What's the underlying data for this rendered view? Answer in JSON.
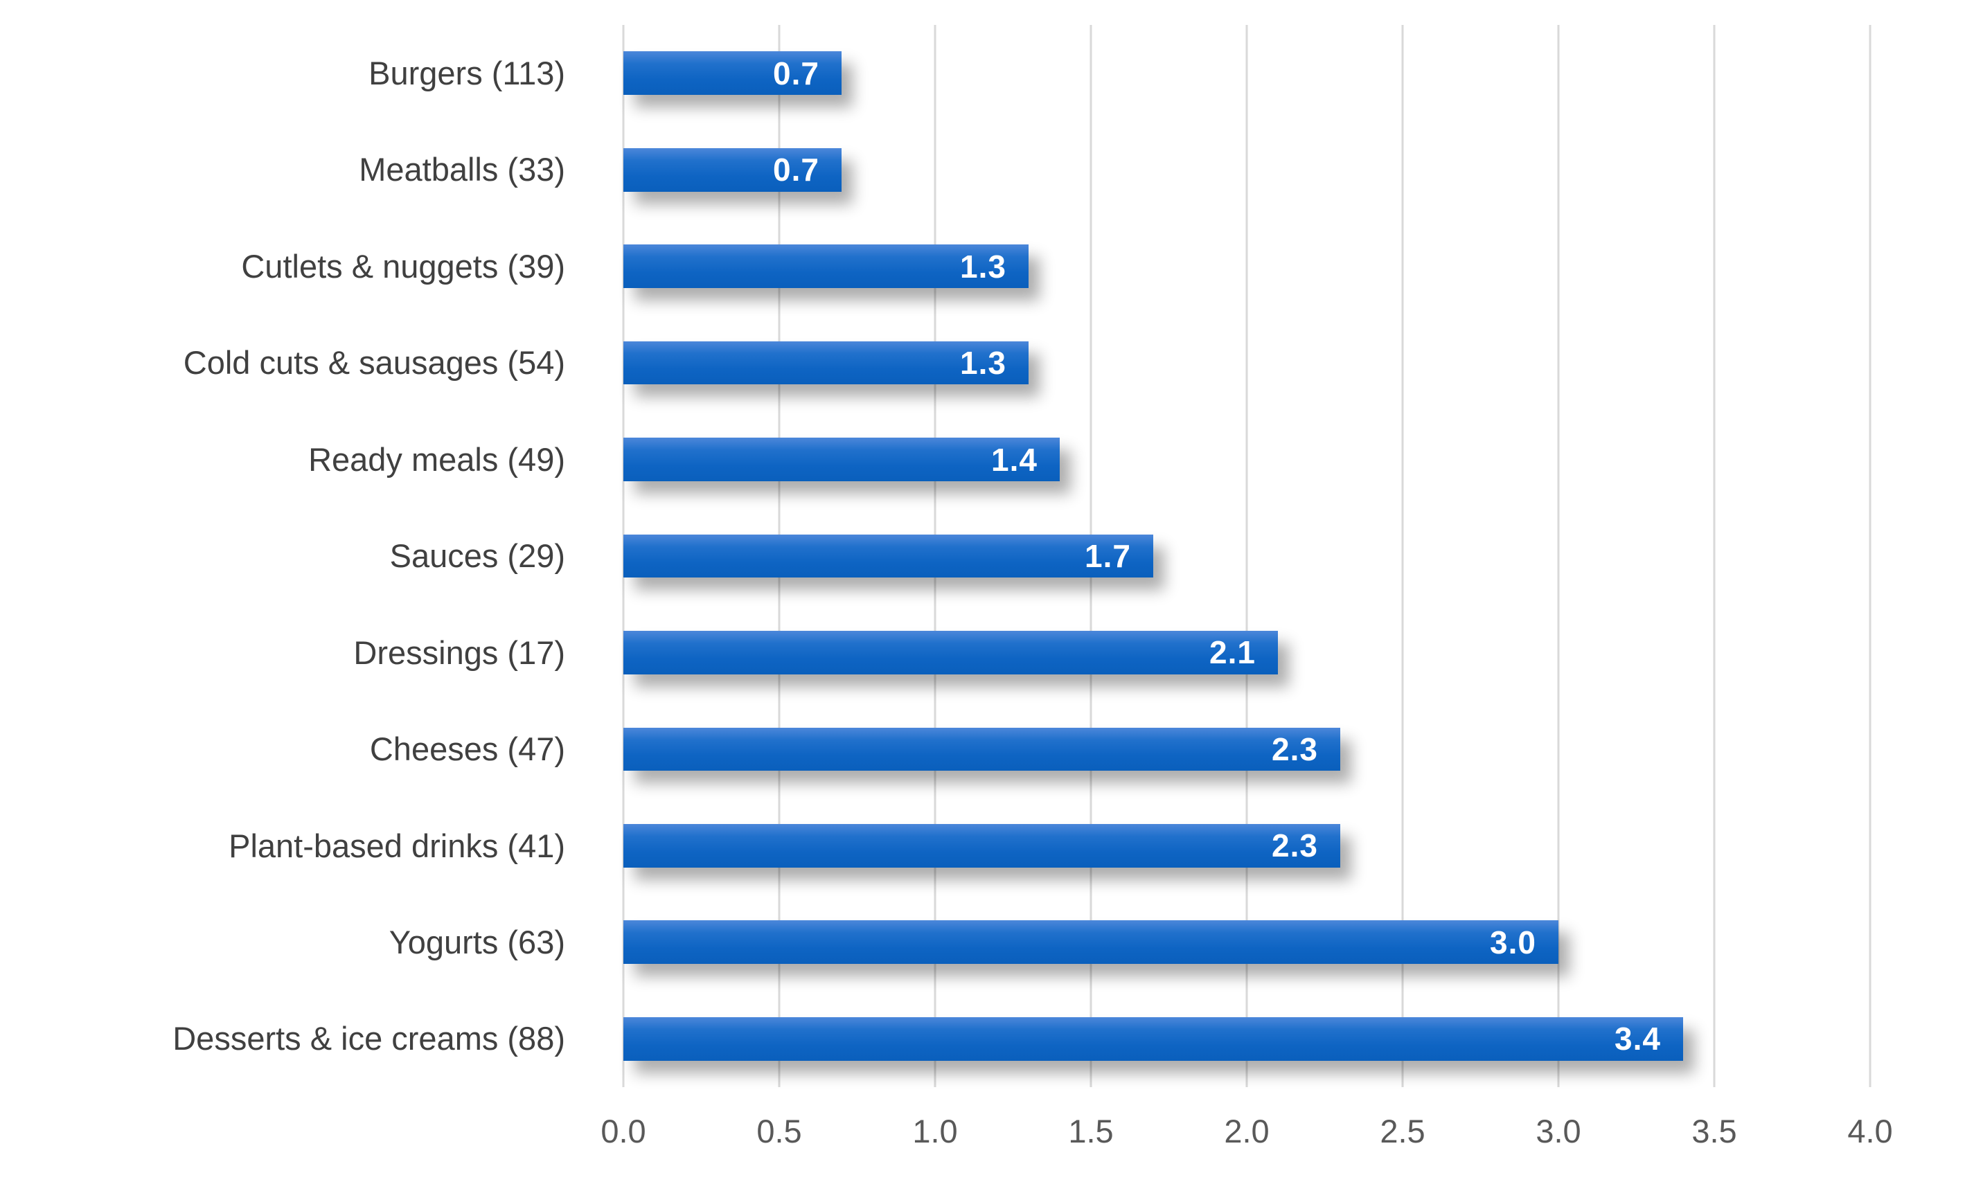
{
  "chart_data": {
    "type": "bar",
    "orientation": "horizontal",
    "title": "",
    "xlabel": "",
    "ylabel": "",
    "categories": [
      "Burgers (113)",
      "Meatballs (33)",
      "Cutlets & nuggets (39)",
      "Cold cuts & sausages (54)",
      "Ready meals (49)",
      "Sauces (29)",
      "Dressings (17)",
      "Cheeses (47)",
      "Plant-based drinks (41)",
      "Yogurts (63)",
      "Desserts & ice creams (88)"
    ],
    "values": [
      0.7,
      0.7,
      1.3,
      1.3,
      1.4,
      1.7,
      2.1,
      2.3,
      2.3,
      3.0,
      3.4
    ],
    "value_labels": [
      "0.7",
      "0.7",
      "1.3",
      "1.3",
      "1.4",
      "1.7",
      "2.1",
      "2.3",
      "2.3",
      "3.0",
      "3.4"
    ],
    "xlim": [
      0.0,
      4.0
    ],
    "x_ticks": [
      "0.0",
      "0.5",
      "1.0",
      "1.5",
      "2.0",
      "2.5",
      "3.0",
      "3.5",
      "4.0"
    ],
    "grid": "vertical-gridlines-on",
    "legend": "none",
    "colors": {
      "bar_gradient_top": "#4c87da",
      "bar_gradient_bottom": "#0a5fbc",
      "value_label": "#ffffff",
      "category_label": "#404040",
      "tick_label": "#595959",
      "gridline": "#d9d9d9",
      "background": "#ffffff"
    }
  }
}
